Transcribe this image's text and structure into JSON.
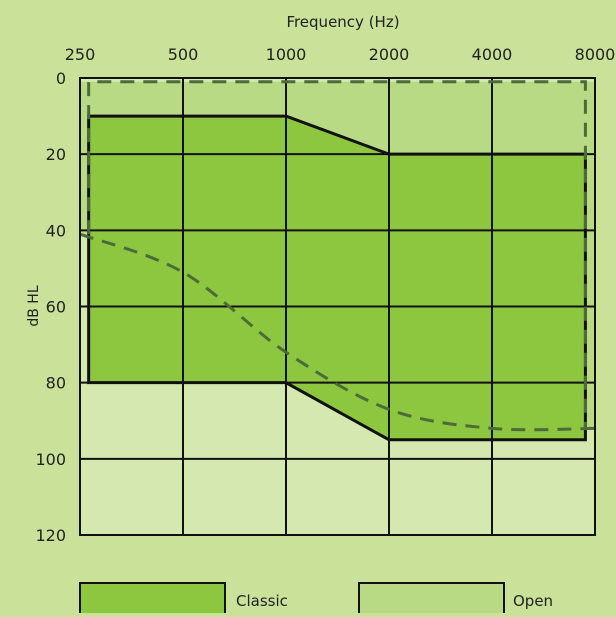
{
  "chart_data": {
    "type": "area",
    "title": "",
    "xlabel": "Frequency (Hz)",
    "ylabel": "dB HL",
    "x_scale": "log2",
    "y_inverted": true,
    "x_ticks": [
      250,
      500,
      1000,
      2000,
      4000,
      8000
    ],
    "x_tick_labels": [
      "250",
      "500",
      "1000",
      "2000",
      "4000",
      "8000"
    ],
    "y_ticks": [
      0,
      20,
      40,
      60,
      80,
      100,
      120
    ],
    "y_tick_labels": [
      "0",
      "20",
      "40",
      "60",
      "80",
      "100",
      "120"
    ],
    "xlim": [
      250,
      8000
    ],
    "ylim": [
      0,
      120
    ],
    "grid": true,
    "legend_position": "bottom",
    "series": [
      {
        "name": "Open",
        "kind": "dashed-outline-region",
        "color": "#b8da84",
        "upper": {
          "x": [
            250,
            8000
          ],
          "y": [
            1,
            1
          ]
        },
        "lower": {
          "x": [
            250,
            500,
            1000,
            2000,
            4000,
            8000
          ],
          "y": [
            41,
            51,
            72,
            87,
            92,
            92
          ]
        },
        "outline": {
          "x": [
            265,
            265,
            7500,
            7500
          ],
          "y": [
            41,
            1,
            1,
            92
          ]
        }
      },
      {
        "name": "Classic",
        "kind": "solid-outline-region",
        "color": "#8dc63f",
        "polygon": {
          "x": [
            265,
            1000,
            2000,
            7500,
            7500,
            2000,
            1000,
            265
          ],
          "y": [
            10,
            10,
            20,
            20,
            95,
            95,
            80,
            80
          ]
        }
      }
    ]
  },
  "legend": {
    "classic_label": "Classic",
    "open_label": "Open",
    "classic_color": "#8dc63f",
    "open_color": "#b8da84"
  },
  "colors": {
    "background": "#c9e199",
    "plot_background": "#d4e8b0",
    "grid": "#111111",
    "open_dash": "#4d6b3a"
  }
}
